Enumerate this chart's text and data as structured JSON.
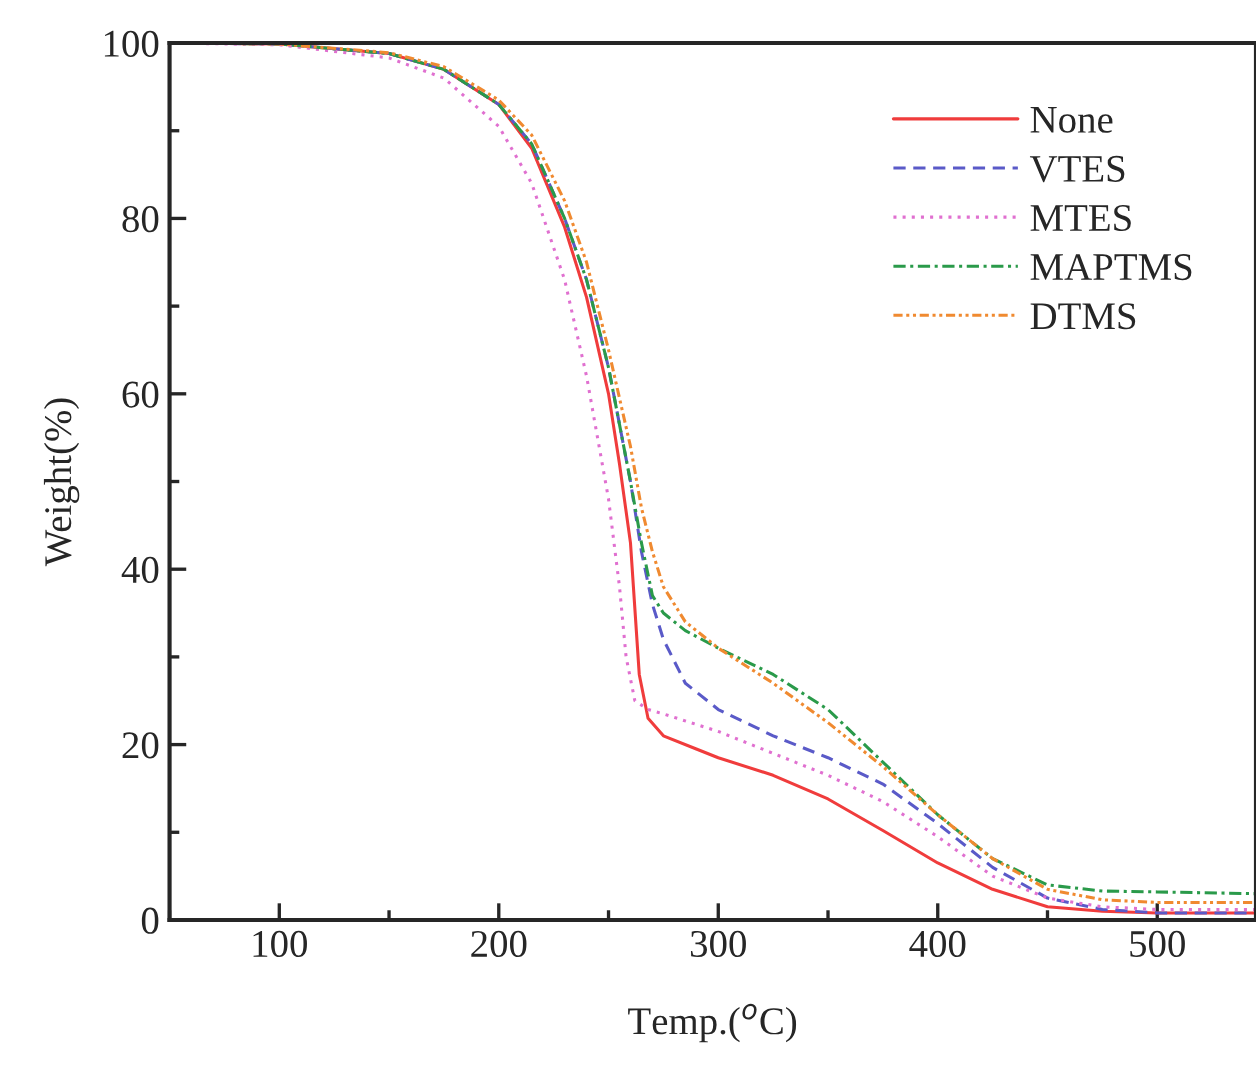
{
  "chart_data": {
    "type": "line",
    "xlabel": "Temp.($^{o}$C)",
    "ylabel": "Weight(%)",
    "xlim": [
      50,
      545
    ],
    "ylim": [
      0,
      100
    ],
    "xticks": [
      100,
      200,
      300,
      400,
      500
    ],
    "yticks": [
      0,
      20,
      40,
      60,
      80,
      100
    ],
    "grid": false,
    "legend": "top right",
    "marker": "none",
    "series": [
      {
        "name": "None",
        "color": "#f03c3c",
        "line_style": "solid",
        "x": [
          50,
          100,
          150,
          175,
          200,
          215,
          230,
          240,
          250,
          255,
          260,
          264,
          268,
          275,
          290,
          300,
          325,
          350,
          375,
          400,
          425,
          450,
          475,
          500,
          545
        ],
        "values": [
          100,
          99.9,
          98.8,
          97,
          93,
          88,
          79,
          71,
          60,
          52,
          43,
          28,
          23,
          21,
          19.5,
          18.5,
          16.5,
          13.8,
          10.2,
          6.5,
          3.5,
          1.5,
          1,
          0.8,
          0.8
        ]
      },
      {
        "name": "VTES",
        "color": "#5a5ac8",
        "line_style": "dashed",
        "x": [
          50,
          100,
          150,
          175,
          200,
          215,
          230,
          240,
          250,
          260,
          265,
          270,
          275,
          285,
          300,
          325,
          350,
          375,
          400,
          425,
          450,
          475,
          500,
          545
        ],
        "values": [
          100,
          99.9,
          98.8,
          97,
          93,
          88.5,
          80,
          73,
          63,
          50,
          42,
          36,
          32,
          27,
          24,
          21,
          18.5,
          15.5,
          11,
          6,
          2.5,
          1.2,
          0.8,
          0.8
        ]
      },
      {
        "name": "MTES",
        "color": "#e070d0",
        "line_style": "dotted",
        "x": [
          50,
          100,
          150,
          175,
          200,
          215,
          230,
          240,
          250,
          255,
          258,
          262,
          268,
          275,
          300,
          325,
          350,
          375,
          400,
          425,
          450,
          475,
          500,
          545
        ],
        "values": [
          100,
          99.8,
          98.3,
          96,
          90.5,
          84,
          73,
          62,
          48,
          38,
          30,
          25,
          24,
          23.5,
          21.5,
          19,
          16.5,
          13.5,
          9.5,
          5,
          2.5,
          1.5,
          1.2,
          1.2
        ]
      },
      {
        "name": "MAPTMS",
        "color": "#2a9a4a",
        "line_style": "dashdot",
        "x": [
          50,
          100,
          150,
          175,
          200,
          215,
          230,
          240,
          250,
          260,
          265,
          270,
          275,
          285,
          300,
          325,
          350,
          375,
          400,
          425,
          450,
          475,
          500,
          545
        ],
        "values": [
          100,
          99.9,
          98.8,
          97,
          93,
          88.5,
          80,
          73,
          63,
          50,
          43,
          37,
          35,
          33,
          31,
          28,
          24,
          18,
          12,
          7,
          4,
          3.3,
          3.2,
          3
        ]
      },
      {
        "name": "DTMS",
        "color": "#f08a30",
        "line_style": "dashdotdot",
        "x": [
          50,
          100,
          150,
          175,
          200,
          215,
          230,
          240,
          250,
          260,
          265,
          270,
          275,
          285,
          300,
          325,
          350,
          375,
          400,
          425,
          450,
          475,
          500,
          545
        ],
        "values": [
          100,
          99.9,
          98.9,
          97.3,
          93.5,
          89.5,
          82,
          75,
          65,
          54,
          47,
          42,
          38,
          34,
          31,
          27,
          22.5,
          17.5,
          12,
          7,
          3.5,
          2.3,
          2,
          2
        ]
      }
    ]
  }
}
